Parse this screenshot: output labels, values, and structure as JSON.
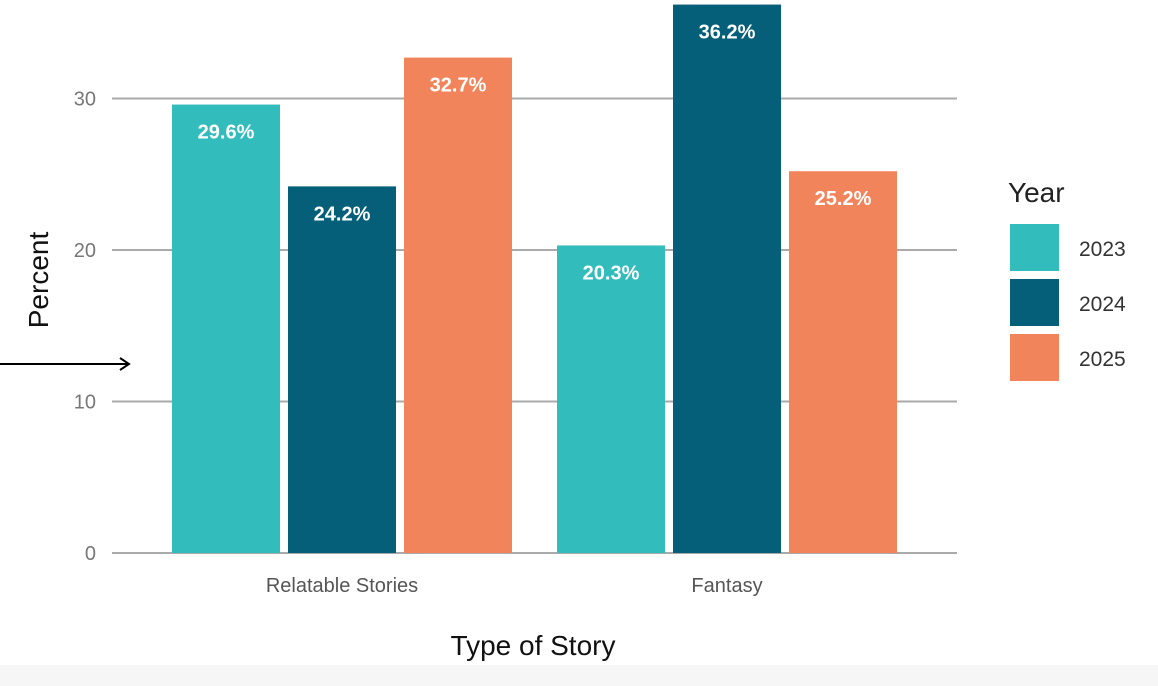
{
  "chart_data": {
    "type": "bar",
    "title": "",
    "xlabel": "Type of Story",
    "ylabel": "Percent",
    "categories": [
      "Relatable Stories",
      "Fantasy"
    ],
    "series": [
      {
        "name": "2023",
        "color": "#33bcbc",
        "values": [
          29.6,
          20.3
        ],
        "labels": [
          "29.6%",
          "20.3%"
        ]
      },
      {
        "name": "2024",
        "color": "#055f78",
        "values": [
          24.2,
          36.2
        ],
        "labels": [
          "24.2%",
          "36.2%"
        ]
      },
      {
        "name": "2025",
        "color": "#f2845c",
        "values": [
          32.7,
          25.2
        ],
        "labels": [
          "32.7%",
          "25.2%"
        ]
      }
    ],
    "yticks": [
      0,
      10,
      20,
      30
    ],
    "ytick_labels": [
      "0",
      "10",
      "20",
      "30"
    ],
    "ylim": [
      0,
      36.5
    ],
    "grid": true,
    "legend": {
      "title": "Year",
      "placement": "right"
    }
  }
}
